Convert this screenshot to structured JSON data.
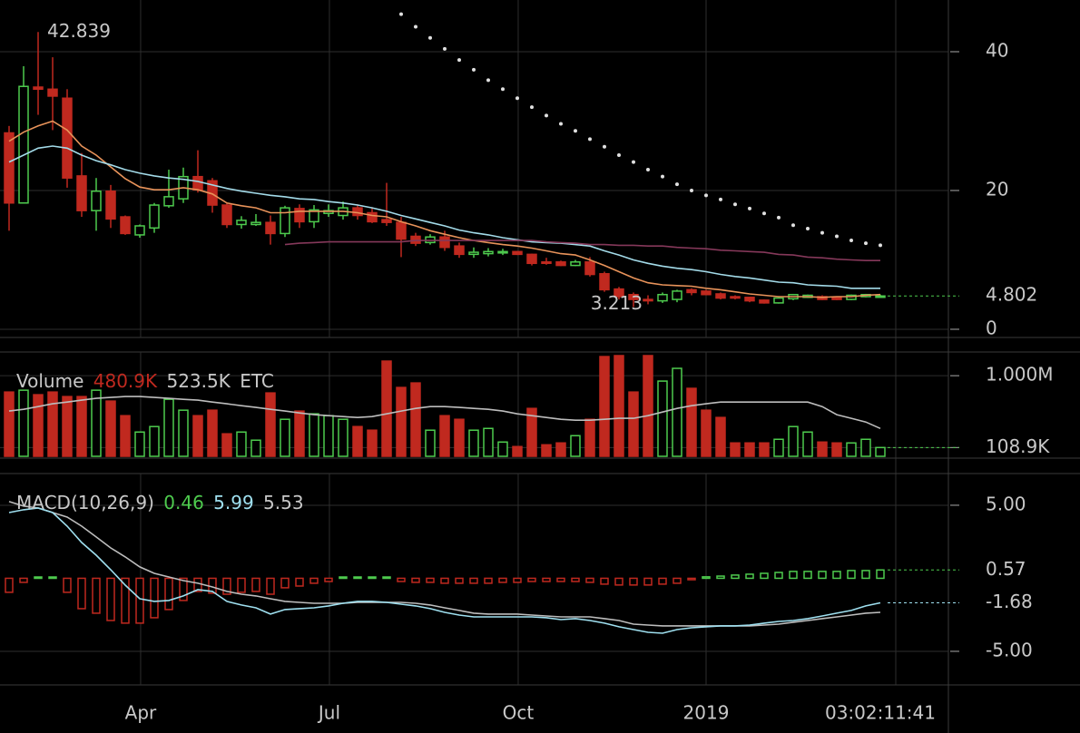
{
  "chart_data": [
    {
      "type": "candlestick",
      "open": [
        28.3,
        18.2,
        34.9,
        34.6,
        33.3,
        22.1,
        17.1,
        19.9,
        16.2,
        13.6,
        14.6,
        17.8,
        18.8,
        22.0,
        21.4,
        17.9,
        15.1,
        15.1,
        15.4,
        13.8,
        17.4,
        15.5,
        16.7,
        16.4,
        17.5,
        16.8,
        15.8,
        15.4,
        13.4,
        12.5,
        13.3,
        12.0,
        10.8,
        10.9,
        11.0,
        11.2,
        10.8,
        9.7,
        9.7,
        9.2,
        9.7,
        8.0,
        5.8,
        5.0,
        4.3,
        4.1,
        4.3,
        5.7,
        5.5,
        5.1,
        4.7,
        4.6,
        4.2,
        3.8,
        4.4,
        4.6,
        4.7,
        4.6,
        4.3,
        4.7,
        4.7
      ],
      "high": [
        29.3,
        37.9,
        42.839,
        39.2,
        34.6,
        25.4,
        21.8,
        20.8,
        16.4,
        15.1,
        18.2,
        23.0,
        23.3,
        25.8,
        21.8,
        18.2,
        16.3,
        16.6,
        16.4,
        17.8,
        18.0,
        17.9,
        18.0,
        18.4,
        18.0,
        17.6,
        21.1,
        16.2,
        13.9,
        13.7,
        14.2,
        12.5,
        11.8,
        11.7,
        11.6,
        11.3,
        10.9,
        10.3,
        9.9,
        10.0,
        10.4,
        8.3,
        6.1,
        5.3,
        4.9,
        5.3,
        5.7,
        5.9,
        5.7,
        5.3,
        4.9,
        4.7,
        4.3,
        4.6,
        5.1,
        5.0,
        4.9,
        4.7,
        5.0,
        5.1,
        5.0
      ],
      "low": [
        14.2,
        18.2,
        30.9,
        28.7,
        20.4,
        16.2,
        14.2,
        14.6,
        13.6,
        13.2,
        13.9,
        17.5,
        18.2,
        19.7,
        16.8,
        14.6,
        14.5,
        14.9,
        12.2,
        13.3,
        14.6,
        14.6,
        16.2,
        15.8,
        15.8,
        15.3,
        14.9,
        10.4,
        12.0,
        12.2,
        11.3,
        10.3,
        10.3,
        10.5,
        10.7,
        10.7,
        9.2,
        9.3,
        9.1,
        9.1,
        7.6,
        5.4,
        4.3,
        3.213,
        3.6,
        3.8,
        3.9,
        4.9,
        4.9,
        4.3,
        4.3,
        3.9,
        3.7,
        3.7,
        4.2,
        4.5,
        4.2,
        4.2,
        4.2,
        4.6,
        4.6
      ],
      "close": [
        18.2,
        35.0,
        34.6,
        33.6,
        21.8,
        17.1,
        19.9,
        15.9,
        13.8,
        14.9,
        17.9,
        19.1,
        22.0,
        20.1,
        17.9,
        15.1,
        15.7,
        15.4,
        13.8,
        17.5,
        15.5,
        17.2,
        17.1,
        17.5,
        16.4,
        15.5,
        15.4,
        13.0,
        12.4,
        13.3,
        11.8,
        10.8,
        11.1,
        11.2,
        11.2,
        10.8,
        9.5,
        9.6,
        9.2,
        9.7,
        7.9,
        5.7,
        4.7,
        4.3,
        4.2,
        5.0,
        5.5,
        5.3,
        5.0,
        4.5,
        4.5,
        4.1,
        3.8,
        4.5,
        5.0,
        4.9,
        4.3,
        4.3,
        4.9,
        5.0,
        4.802
      ],
      "up_color": "#4ecb4e",
      "down_color": "#c0291f",
      "series": [
        {
          "color": "#e8935a",
          "values": [
            27.1,
            28.4,
            29.3,
            30.0,
            28.7,
            26.4,
            25.1,
            23.4,
            21.7,
            20.5,
            20.1,
            20.1,
            20.4,
            20.1,
            19.5,
            18.2,
            17.8,
            17.5,
            16.8,
            16.8,
            17.0,
            17.0,
            17.0,
            17.0,
            16.8,
            16.4,
            16.2,
            15.5,
            14.9,
            14.2,
            13.7,
            13.2,
            12.8,
            12.5,
            12.2,
            12.0,
            11.7,
            11.3,
            10.9,
            10.7,
            10.0,
            9.2,
            8.3,
            7.4,
            6.7,
            6.4,
            6.3,
            6.2,
            5.9,
            5.7,
            5.4,
            5.1,
            4.9,
            4.7,
            4.7,
            4.7,
            4.6,
            4.7,
            4.7,
            4.9,
            5.0
          ]
        },
        {
          "color": "#a3dbe9",
          "values": [
            24.1,
            25.1,
            26.1,
            26.4,
            26.1,
            25.1,
            24.3,
            23.7,
            23.0,
            22.5,
            22.1,
            21.8,
            21.6,
            21.3,
            20.8,
            20.3,
            19.9,
            19.6,
            19.3,
            19.1,
            18.8,
            18.7,
            18.4,
            18.2,
            17.9,
            17.5,
            17.0,
            16.4,
            15.9,
            15.4,
            14.9,
            14.3,
            13.9,
            13.6,
            13.2,
            12.9,
            12.6,
            12.5,
            12.4,
            12.2,
            12.0,
            11.3,
            10.7,
            10.0,
            9.5,
            9.1,
            8.8,
            8.6,
            8.3,
            7.9,
            7.6,
            7.4,
            7.1,
            6.8,
            6.7,
            6.4,
            6.3,
            6.2,
            5.9,
            5.9,
            5.9
          ]
        },
        {
          "color": "#85385a",
          "values": [
            null,
            null,
            null,
            null,
            null,
            null,
            null,
            null,
            null,
            null,
            null,
            null,
            null,
            null,
            null,
            null,
            null,
            null,
            null,
            12.2,
            12.4,
            12.5,
            12.6,
            12.6,
            12.6,
            12.6,
            12.6,
            12.6,
            12.8,
            12.8,
            12.8,
            12.8,
            12.8,
            12.8,
            12.8,
            12.8,
            12.8,
            12.6,
            12.5,
            12.4,
            12.2,
            12.2,
            12.1,
            12.1,
            12.0,
            12.0,
            11.8,
            11.7,
            11.6,
            11.4,
            11.3,
            11.2,
            11.1,
            10.8,
            10.7,
            10.4,
            10.3,
            10.1,
            10.0,
            9.9,
            9.9
          ]
        },
        {
          "color": "#e0e0e0",
          "style": "dots",
          "values": [
            null,
            null,
            null,
            null,
            null,
            null,
            null,
            null,
            null,
            null,
            null,
            null,
            null,
            null,
            null,
            null,
            null,
            null,
            null,
            null,
            null,
            null,
            null,
            null,
            null,
            null,
            null,
            45.4,
            43.6,
            42.0,
            40.4,
            38.8,
            37.4,
            35.9,
            34.6,
            33.3,
            32.0,
            30.8,
            29.6,
            28.6,
            27.4,
            26.3,
            25.1,
            24.1,
            23.0,
            22.0,
            20.9,
            20.0,
            19.3,
            18.7,
            18.0,
            17.4,
            16.7,
            16.1,
            15.0,
            14.5,
            13.9,
            13.4,
            12.8,
            12.4,
            12.1
          ]
        }
      ],
      "xlim": [
        -0.625,
        64.6875
      ],
      "ylim": [
        -1.18,
        47.45
      ],
      "yticks": [
        0,
        20,
        40
      ],
      "grid": true
    },
    {
      "type": "bar",
      "label": "Volume",
      "legend_values": [
        "480.9K",
        "523.5K"
      ],
      "unit": "ETC",
      "values": [
        797000,
        820000,
        764000,
        797000,
        741000,
        741000,
        820000,
        685000,
        504000,
        301000,
        369000,
        707000,
        572000,
        504000,
        572000,
        279000,
        301000,
        200000,
        786000,
        459000,
        561000,
        527000,
        504000,
        459000,
        369000,
        324000,
        1181000,
        854000,
        910000,
        324000,
        504000,
        459000,
        324000,
        346000,
        177000,
        121000,
        594000,
        143000,
        166000,
        256000,
        459000,
        1237000,
        1249000,
        797000,
        1249000,
        933000,
        1091000,
        843000,
        572000,
        482000,
        166000,
        166000,
        166000,
        211000,
        369000,
        301000,
        177000,
        166000,
        166000,
        211000,
        108900
      ],
      "series": [
        {
          "color": "#bdbdbd",
          "values": [
            561000,
            583000,
            617000,
            651000,
            673000,
            696000,
            719000,
            730000,
            741000,
            741000,
            730000,
            719000,
            707000,
            696000,
            673000,
            651000,
            628000,
            606000,
            583000,
            561000,
            538000,
            516000,
            504000,
            493000,
            482000,
            493000,
            527000,
            561000,
            594000,
            617000,
            617000,
            606000,
            594000,
            583000,
            561000,
            527000,
            504000,
            482000,
            459000,
            448000,
            448000,
            459000,
            471000,
            471000,
            504000,
            549000,
            594000,
            628000,
            651000,
            673000,
            673000,
            673000,
            673000,
            673000,
            673000,
            673000,
            617000,
            516000,
            471000,
            425000,
            346000
          ]
        }
      ],
      "xlim": [
        -0.625,
        64.6875
      ],
      "ylim": [
        0,
        1294000
      ],
      "yticks": [
        {
          "value": 1000000,
          "label": "1.000M"
        },
        {
          "value": 108900,
          "label": "108.9K"
        }
      ],
      "grid": true
    },
    {
      "type": "macd",
      "label": "MACD(10,26,9)",
      "legend_values": [
        0.46,
        5.99,
        5.53
      ],
      "histogram": [
        -0.96,
        -0.28,
        0.09,
        0.09,
        -0.96,
        -2.08,
        -2.39,
        -2.89,
        -3.07,
        -3.07,
        -2.7,
        -2.14,
        -1.52,
        -0.9,
        -1.02,
        -1.09,
        -0.96,
        -0.9,
        -1.09,
        -0.65,
        -0.53,
        -0.34,
        -0.22,
        0.09,
        0.09,
        0.09,
        0.09,
        -0.22,
        -0.28,
        -0.28,
        -0.34,
        -0.34,
        -0.34,
        -0.34,
        -0.28,
        -0.28,
        -0.22,
        -0.22,
        -0.22,
        -0.22,
        -0.28,
        -0.4,
        -0.46,
        -0.46,
        -0.46,
        -0.4,
        -0.34,
        -0.1,
        0.1,
        0.15,
        0.22,
        0.28,
        0.34,
        0.4,
        0.47,
        0.47,
        0.47,
        0.47,
        0.53,
        0.53,
        0.57
      ],
      "series": [
        {
          "color": "#bdbdbd",
          "values": [
            5.25,
            4.94,
            4.81,
            4.5,
            4.19,
            3.57,
            2.83,
            2.08,
            1.46,
            0.78,
            0.34,
            0.09,
            -0.16,
            -0.34,
            -0.59,
            -0.9,
            -1.09,
            -1.21,
            -1.4,
            -1.58,
            -1.65,
            -1.71,
            -1.71,
            -1.71,
            -1.65,
            -1.65,
            -1.65,
            -1.65,
            -1.71,
            -1.83,
            -2.02,
            -2.2,
            -2.39,
            -2.45,
            -2.45,
            -2.45,
            -2.52,
            -2.58,
            -2.64,
            -2.64,
            -2.64,
            -2.76,
            -2.89,
            -3.14,
            -3.2,
            -3.26,
            -3.26,
            -3.26,
            -3.26,
            -3.26,
            -3.26,
            -3.26,
            -3.2,
            -3.14,
            -3.01,
            -2.89,
            -2.76,
            -2.64,
            -2.52,
            -2.39,
            -2.33
          ]
        },
        {
          "color": "#9fe0f0",
          "values": [
            4.5,
            4.69,
            4.81,
            4.5,
            3.57,
            2.45,
            1.58,
            0.59,
            -0.47,
            -1.4,
            -1.58,
            -1.52,
            -1.21,
            -0.78,
            -0.9,
            -1.58,
            -1.83,
            -2.02,
            -2.45,
            -2.14,
            -2.08,
            -2.02,
            -1.89,
            -1.71,
            -1.58,
            -1.58,
            -1.65,
            -1.77,
            -1.89,
            -2.08,
            -2.33,
            -2.52,
            -2.64,
            -2.64,
            -2.64,
            -2.64,
            -2.64,
            -2.7,
            -2.83,
            -2.76,
            -2.89,
            -3.07,
            -3.32,
            -3.51,
            -3.7,
            -3.76,
            -3.51,
            -3.39,
            -3.32,
            -3.26,
            -3.26,
            -3.2,
            -3.07,
            -2.95,
            -2.89,
            -2.76,
            -2.58,
            -2.39,
            -2.2,
            -1.89,
            -1.68
          ]
        }
      ],
      "up_color": "#4ecb4e",
      "down_color": "#c0291f",
      "xlim": [
        -0.625,
        64.6875
      ],
      "ylim": [
        -7.3,
        7.17
      ],
      "yticks": [
        {
          "value": 5,
          "label": "5.00"
        },
        {
          "value": -5,
          "label": "-5.00"
        }
      ],
      "xticks": [
        {
          "value": 9.06,
          "label": "Apr"
        },
        {
          "value": 22.06,
          "label": "Jul"
        },
        {
          "value": 35.06,
          "label": "Oct"
        },
        {
          "value": 48.0,
          "label": "2019"
        }
      ],
      "grid": true
    }
  ],
  "countdown": "03:02:11:41"
}
